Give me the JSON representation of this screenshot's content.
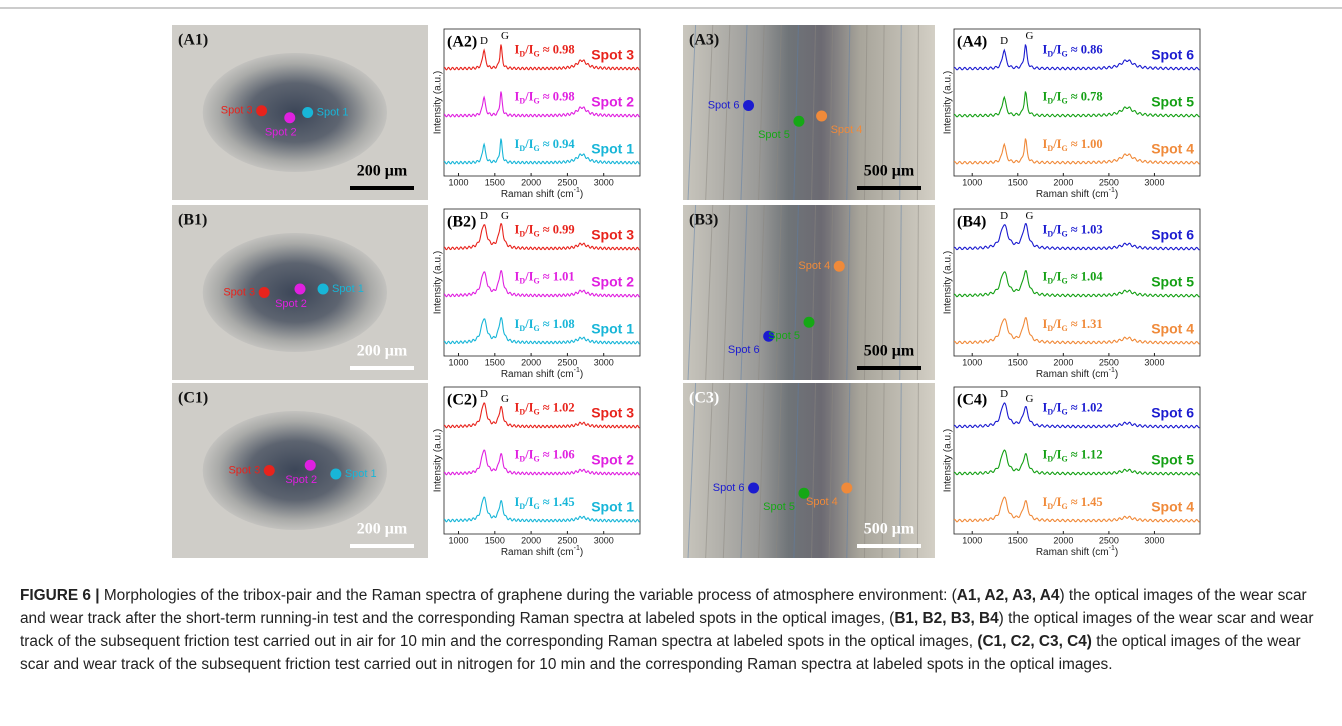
{
  "figure": {
    "x_ticks": [
      "1000",
      "1500",
      "2000",
      "2500",
      "3000"
    ],
    "y_axis_label": "Intensity (a.u.)",
    "x_axis_label": [
      "Raman shift (cm",
      "-1",
      ")"
    ],
    "peaks": [
      "D",
      "G"
    ],
    "ratio_symbol": [
      "I",
      "D",
      "/I",
      "G"
    ],
    "rows": [
      {
        "scar": {
          "label": "(A1)",
          "scale_bar": "200 μm",
          "spots": [
            {
              "name": "Spot 3",
              "color": "#e8231c"
            },
            {
              "name": "Spot 2",
              "color": "#e020e0"
            },
            {
              "name": "Spot 1",
              "color": "#18b6d8"
            }
          ]
        },
        "scar_spectra": {
          "label": "(A2)",
          "traces": [
            {
              "name": "Spot 3",
              "color": "#e8231c",
              "ratio": "≈ 0.98"
            },
            {
              "name": "Spot 2",
              "color": "#e020e0",
              "ratio": "≈ 0.98"
            },
            {
              "name": "Spot 1",
              "color": "#18b6d8",
              "ratio": "≈ 0.94"
            }
          ]
        },
        "track": {
          "label": "(A3)",
          "scale_bar": "500 μm",
          "spots": [
            {
              "name": "Spot 6",
              "color": "#1b1bd0"
            },
            {
              "name": "Spot 5",
              "color": "#15a815"
            },
            {
              "name": "Spot 4",
              "color": "#f08a3a"
            }
          ]
        },
        "track_spectra": {
          "label": "(A4)",
          "traces": [
            {
              "name": "Spot 6",
              "color": "#1b1bd0",
              "ratio": "≈ 0.86"
            },
            {
              "name": "Spot 5",
              "color": "#15a015",
              "ratio": "≈ 0.78"
            },
            {
              "name": "Spot 4",
              "color": "#f08a3a",
              "ratio": "≈ 1.00"
            }
          ]
        }
      },
      {
        "scar": {
          "label": "(B1)",
          "scale_bar": "200 μm",
          "spots": [
            {
              "name": "Spot 3",
              "color": "#e8231c"
            },
            {
              "name": "Spot 2",
              "color": "#e020e0"
            },
            {
              "name": "Spot 1",
              "color": "#18b6d8"
            }
          ]
        },
        "scar_spectra": {
          "label": "(B2)",
          "traces": [
            {
              "name": "Spot 3",
              "color": "#e8231c",
              "ratio": "≈ 0.99"
            },
            {
              "name": "Spot 2",
              "color": "#e020e0",
              "ratio": "≈ 1.01"
            },
            {
              "name": "Spot 1",
              "color": "#18b6d8",
              "ratio": "≈ 1.08"
            }
          ]
        },
        "track": {
          "label": "(B3)",
          "scale_bar": "500 μm",
          "spots": [
            {
              "name": "Spot 4",
              "color": "#f08a3a"
            },
            {
              "name": "Spot 6",
              "color": "#1b1bd0"
            },
            {
              "name": "Spot 5",
              "color": "#15a815"
            }
          ]
        },
        "track_spectra": {
          "label": "(B4)",
          "traces": [
            {
              "name": "Spot 6",
              "color": "#1b1bd0",
              "ratio": "≈ 1.03"
            },
            {
              "name": "Spot 5",
              "color": "#15a015",
              "ratio": "≈ 1.04"
            },
            {
              "name": "Spot 4",
              "color": "#f08a3a",
              "ratio": "≈ 1.31"
            }
          ]
        }
      },
      {
        "scar": {
          "label": "(C1)",
          "scale_bar": "200 μm",
          "spots": [
            {
              "name": "Spot 3",
              "color": "#e8231c"
            },
            {
              "name": "Spot 2",
              "color": "#e020e0"
            },
            {
              "name": "Spot 1",
              "color": "#18b6d8"
            }
          ]
        },
        "scar_spectra": {
          "label": "(C2)",
          "traces": [
            {
              "name": "Spot 3",
              "color": "#e8231c",
              "ratio": "≈ 1.02"
            },
            {
              "name": "Spot 2",
              "color": "#e020e0",
              "ratio": "≈ 1.06"
            },
            {
              "name": "Spot 1",
              "color": "#18b6d8",
              "ratio": "≈ 1.45"
            }
          ]
        },
        "track": {
          "label": "(C3)",
          "scale_bar": "500 μm",
          "spots": [
            {
              "name": "Spot 6",
              "color": "#1b1bd0"
            },
            {
              "name": "Spot 5",
              "color": "#15a815"
            },
            {
              "name": "Spot 4",
              "color": "#f08a3a"
            }
          ]
        },
        "track_spectra": {
          "label": "(C4)",
          "traces": [
            {
              "name": "Spot 6",
              "color": "#1b1bd0",
              "ratio": "≈ 1.02"
            },
            {
              "name": "Spot 5",
              "color": "#15a015",
              "ratio": "≈ 1.12"
            },
            {
              "name": "Spot 4",
              "color": "#f08a3a",
              "ratio": "≈ 1.45"
            }
          ]
        }
      }
    ]
  },
  "caption": [
    {
      "text": "FIGURE 6 |",
      "bold": true
    },
    {
      "text": " Morphologies of the tribox-pair and the Raman spectra of graphene during the variable process of atmosphere environment: (",
      "bold": false
    },
    {
      "text": "A1, A2, A3, A4",
      "bold": true
    },
    {
      "text": ") the optical images of the wear scar and wear track after the short-term running-in test and the corresponding Raman spectra at labeled spots in the optical images, (",
      "bold": false
    },
    {
      "text": "B1, B2, B3, B4",
      "bold": true
    },
    {
      "text": ") the optical images of the wear scar and wear track of the subsequent friction test carried out in air for 10 min and the corresponding Raman spectra at labeled spots in the optical images, ",
      "bold": false
    },
    {
      "text": "(C1, C2, C3, C4)",
      "bold": true
    },
    {
      "text": " the optical images of the wear scar and wear track of the subsequent friction test carried out in nitrogen for 10 min and the corresponding Raman spectra at labeled spots in the optical images.",
      "bold": false
    }
  ]
}
